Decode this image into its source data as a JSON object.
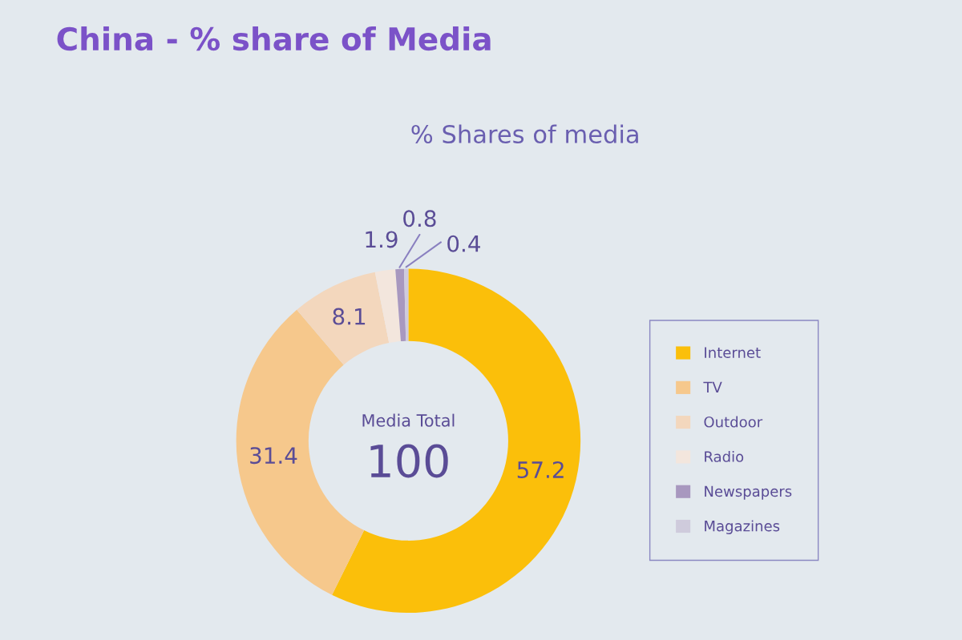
{
  "chart_data": {
    "type": "donut",
    "title": "China - % share of Media",
    "subtitle": "% Shares of media",
    "categories": [
      "Internet",
      "TV",
      "Outdoor",
      "Radio",
      "Newspapers",
      "Magazines"
    ],
    "values": [
      57.2,
      31.4,
      8.1,
      1.9,
      0.8,
      0.4
    ],
    "colors": [
      "#fbbf0a",
      "#f6c88c",
      "#f3d7bd",
      "#f3e6dd",
      "#a898bf",
      "#cfcbdc"
    ],
    "data_labels": true,
    "legend": "right",
    "annotations": [
      "Media Total",
      "100"
    ]
  }
}
